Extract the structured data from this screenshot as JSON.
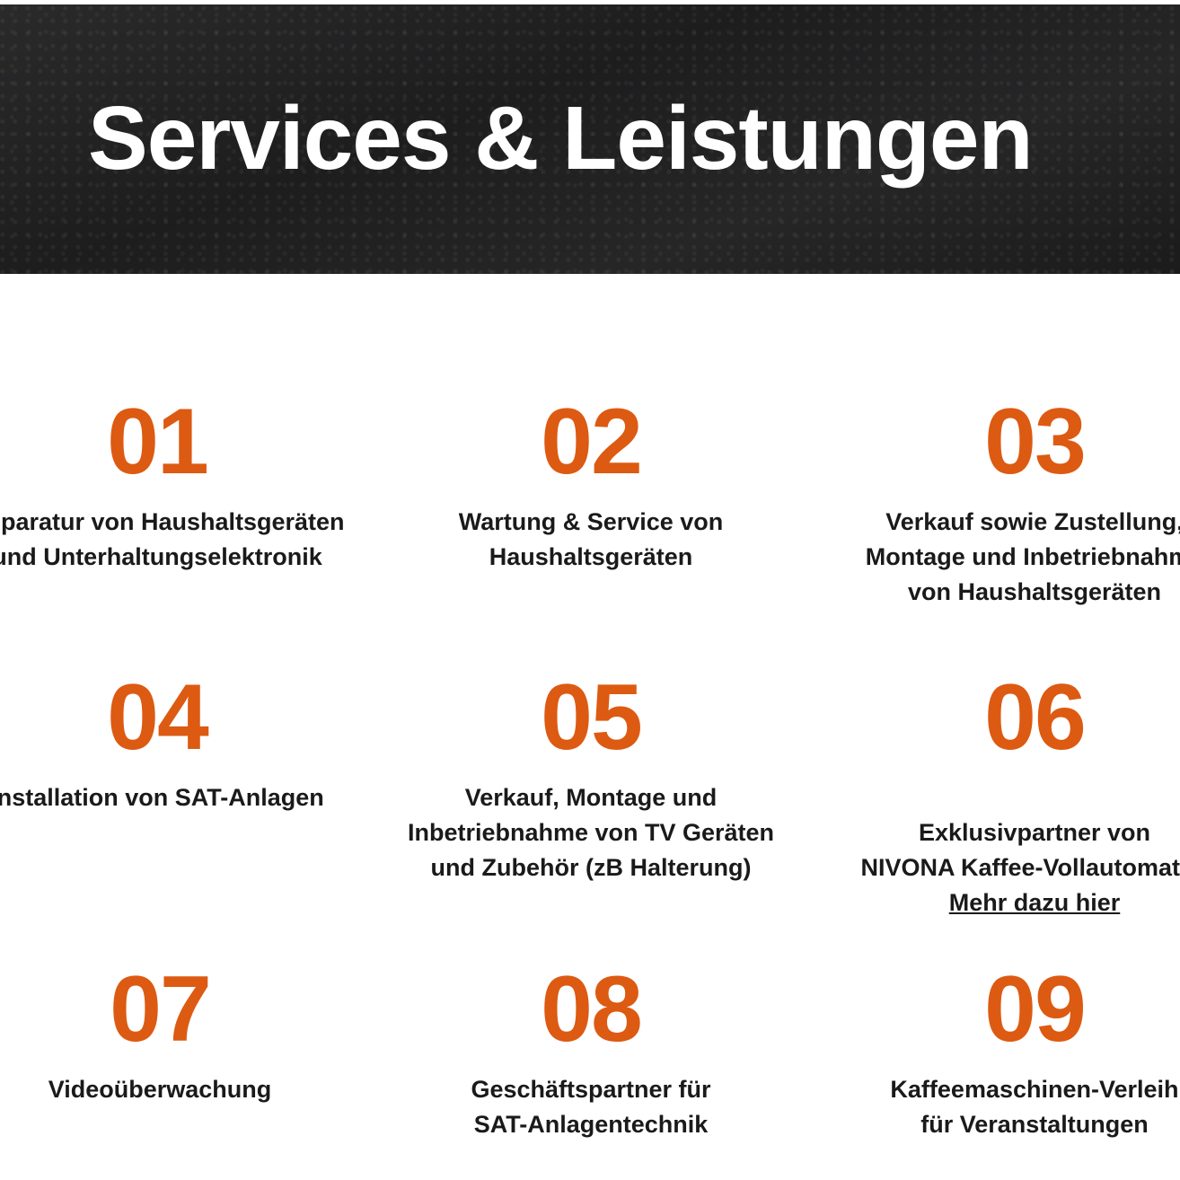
{
  "header": {
    "title": "Services & Leistungen"
  },
  "accent_color": "#dd5a12",
  "services": [
    {
      "number": "01",
      "text": "Reparatur von Haushaltsgeräten\nund Unterhaltungselektronik"
    },
    {
      "number": "02",
      "text": "Wartung & Service von\nHaushaltsgeräten"
    },
    {
      "number": "03",
      "text": "Verkauf sowie Zustellung,\nMontage und Inbetriebnahme\nvon Haushaltsgeräten"
    },
    {
      "number": "04",
      "text": "Installation von SAT-Anlagen"
    },
    {
      "number": "05",
      "text": "Verkauf, Montage und\nInbetriebnahme von TV Geräten\nund Zubehör (zB Halterung)"
    },
    {
      "number": "06",
      "text": "Exklusivpartner von\nNIVONA Kaffee-Vollautomaten",
      "link": "Mehr dazu hier"
    },
    {
      "number": "07",
      "text": "Videoüberwachung"
    },
    {
      "number": "08",
      "text": "Geschäftspartner für\nSAT-Anlagentechnik"
    },
    {
      "number": "09",
      "text": "Kaffeemaschinen-Verleih\nfür Veranstaltungen"
    }
  ]
}
